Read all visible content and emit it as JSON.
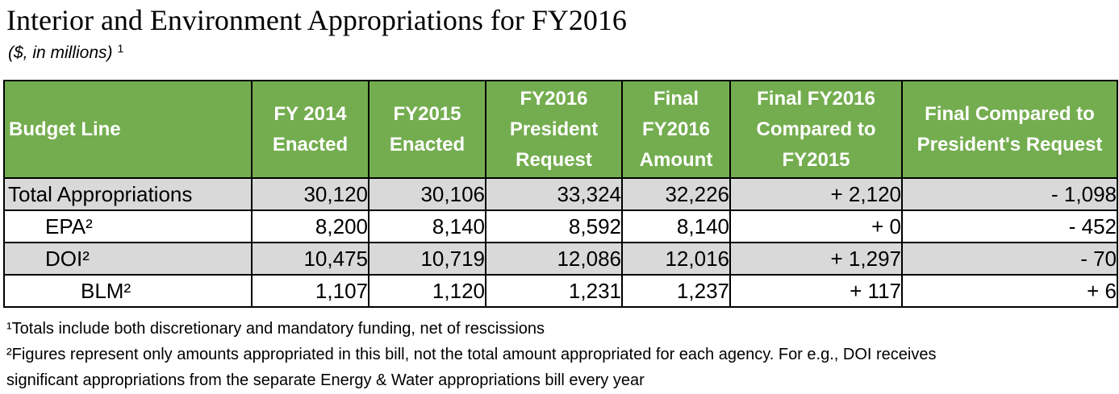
{
  "title": "Interior and Environment Appropriations for FY2016",
  "subtitle": "($, in millions)",
  "subtitle_footnote": "1",
  "table": {
    "header_color": "#74ad4f",
    "shade_color": "#d9d9d9",
    "headers": [
      "Budget Line",
      "FY 2014 Enacted",
      "FY2015 Enacted",
      "FY2016 President Request",
      "Final FY2016 Amount",
      "Final FY2016 Compared to FY2015",
      "Final Compared to President's Request"
    ],
    "rows": [
      {
        "cells": [
          "Total Appropriations",
          "30,120",
          "30,106",
          "33,324",
          "32,226",
          "+ 2,120",
          "- 1,098"
        ]
      },
      {
        "cells": [
          "EPA²",
          "8,200",
          "8,140",
          "8,592",
          "8,140",
          "+ 0",
          "- 452"
        ]
      },
      {
        "cells": [
          "DOI²",
          "10,475",
          "10,719",
          "12,086",
          "12,016",
          "+ 1,297",
          "- 70"
        ]
      },
      {
        "cells": [
          "BLM²",
          "1,107",
          "1,120",
          "1,231",
          "1,237",
          "+ 117",
          "+ 6"
        ]
      }
    ]
  },
  "footnotes": [
    "¹Totals include both discretionary and mandatory funding, net of rescissions",
    "²Figures represent only amounts appropriated in this bill, not the total amount appropriated for each agency. For e.g., DOI receives",
    "significant appropriations from the separate Energy & Water appropriations bill every year"
  ]
}
